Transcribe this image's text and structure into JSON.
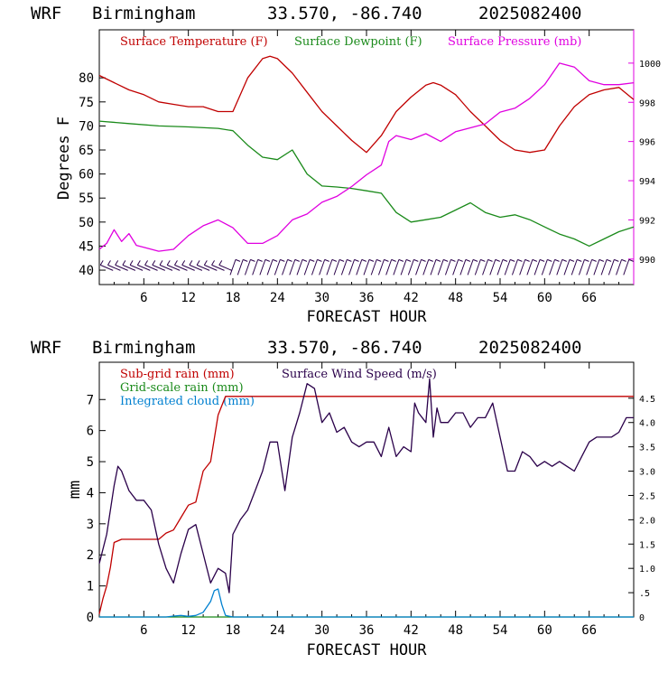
{
  "header": {
    "model": "WRF",
    "station": "Birmingham",
    "coords": "33.570, -86.740",
    "init": "2025082400"
  },
  "colors": {
    "temperature": "#c00000",
    "dewpoint": "#1a8a1a",
    "pressure": "#e000e0",
    "wind_barbs": "#2a004a",
    "subgrid_rain": "#c00000",
    "gridscale_rain": "#1a8a1a",
    "cloud": "#0080d0",
    "wind_speed": "#2a004a"
  },
  "chart_data": [
    {
      "type": "line",
      "title": "",
      "xlabel": "FORECAST HOUR",
      "ylabel": "Degrees F",
      "x_ticks": [
        "6",
        "12",
        "18",
        "24",
        "30",
        "36",
        "42",
        "48",
        "54",
        "60",
        "66"
      ],
      "xlim": [
        0,
        72
      ],
      "ylim": [
        37,
        90
      ],
      "y_ticks": [
        "40",
        "45",
        "50",
        "55",
        "60",
        "65",
        "70",
        "75",
        "80"
      ],
      "y2_ticks": [
        "990",
        "992",
        "994",
        "996",
        "998",
        "1000"
      ],
      "y2lim": [
        988.7,
        1001.7
      ],
      "legend": [
        "Surface Temperature (F)",
        "Surface Dewpoint (F)",
        "Surface Pressure (mb)"
      ],
      "series": [
        {
          "name": "Surface Temperature (F)",
          "axis": "left",
          "x": [
            0,
            2,
            4,
            6,
            8,
            10,
            12,
            14,
            16,
            18,
            20,
            22,
            23,
            24,
            26,
            28,
            30,
            32,
            34,
            36,
            38,
            40,
            42,
            44,
            45,
            46,
            48,
            50,
            52,
            54,
            56,
            58,
            60,
            62,
            64,
            66,
            68,
            70,
            72
          ],
          "values": [
            80.5,
            79,
            77.5,
            76.5,
            75,
            74.5,
            74,
            74,
            73,
            73,
            80,
            84,
            84.5,
            84,
            81,
            77,
            73,
            70,
            67,
            64.5,
            68,
            73,
            76,
            78.5,
            79,
            78.5,
            76.5,
            73,
            70,
            67,
            65,
            64.5,
            65,
            70,
            74,
            76.5,
            77.5,
            78,
            75.5
          ]
        },
        {
          "name": "Surface Dewpoint (F)",
          "axis": "left",
          "x": [
            0,
            4,
            8,
            12,
            16,
            18,
            20,
            22,
            24,
            26,
            28,
            30,
            32,
            34,
            36,
            38,
            40,
            42,
            44,
            46,
            48,
            50,
            52,
            54,
            56,
            58,
            60,
            62,
            64,
            66,
            68,
            70,
            72
          ],
          "values": [
            71,
            70.5,
            70,
            69.8,
            69.5,
            69,
            66,
            63.5,
            63,
            65,
            60,
            57.5,
            57.3,
            57,
            56.5,
            56,
            52,
            50,
            50.5,
            51,
            52.5,
            54,
            52,
            51,
            51.5,
            50.5,
            49,
            47.5,
            46.5,
            45,
            46.5,
            48,
            49
          ]
        },
        {
          "name": "Surface Pressure (mb)",
          "axis": "right",
          "x": [
            0,
            1,
            2,
            3,
            4,
            5,
            6,
            8,
            10,
            12,
            14,
            16,
            18,
            20,
            22,
            24,
            26,
            28,
            30,
            32,
            34,
            36,
            38,
            39,
            40,
            42,
            44,
            46,
            48,
            50,
            52,
            54,
            56,
            58,
            60,
            62,
            64,
            66,
            68,
            70,
            72
          ],
          "values": [
            990.5,
            990.8,
            991.5,
            990.9,
            991.3,
            990.7,
            990.6,
            990.4,
            990.5,
            991.2,
            991.7,
            992,
            991.6,
            990.8,
            990.8,
            991.2,
            992,
            992.3,
            992.9,
            993.2,
            993.7,
            994.3,
            994.8,
            996,
            996.3,
            996.1,
            996.4,
            996,
            996.5,
            996.7,
            996.9,
            997.5,
            997.7,
            998.2,
            998.9,
            1000,
            999.8,
            999.1,
            998.9,
            998.9,
            999
          ]
        }
      ],
      "wind_barb_hours": [
        1,
        2,
        3,
        4,
        5,
        6,
        7,
        8,
        9,
        10,
        11,
        12,
        13,
        14,
        15,
        16,
        17,
        18,
        19,
        20,
        21,
        22,
        23,
        24,
        25,
        26,
        27,
        28,
        29,
        30,
        31,
        32,
        33,
        34,
        35,
        36,
        37,
        38,
        39,
        40,
        41,
        42,
        43,
        44,
        45,
        46,
        47,
        48,
        49,
        50,
        51,
        52,
        53,
        54,
        55,
        56,
        57,
        58,
        59,
        60,
        61,
        62,
        63,
        64,
        65,
        66,
        67,
        68,
        69,
        70,
        71
      ]
    },
    {
      "type": "line",
      "title": "",
      "xlabel": "FORECAST HOUR",
      "ylabel": "mm",
      "x_ticks": [
        "6",
        "12",
        "18",
        "24",
        "30",
        "36",
        "42",
        "48",
        "54",
        "60",
        "66"
      ],
      "xlim": [
        0,
        72
      ],
      "ylim": [
        0,
        8.2
      ],
      "y_ticks": [
        "0",
        "1",
        "2",
        "3",
        "4",
        "5",
        "6",
        "7"
      ],
      "y2_ticks": [
        "0",
        ".5",
        "1.0",
        "1.5",
        "2.0",
        "2.5",
        "3.0",
        "3.5",
        "4.0",
        "4.5"
      ],
      "y2lim": [
        0,
        5.24
      ],
      "legend": [
        "Sub-grid rain (mm)",
        "Grid-scale rain (mm)",
        "Integrated cloud (mm)",
        "Surface Wind Speed (m/s)"
      ],
      "series": [
        {
          "name": "Sub-grid rain (mm)",
          "axis": "left",
          "x": [
            0,
            0.5,
            1,
            1.5,
            2,
            3,
            4,
            6,
            8,
            9,
            10,
            11,
            12,
            13,
            14,
            15,
            16,
            17,
            18,
            19,
            20,
            72
          ],
          "values": [
            0.1,
            0.6,
            1.0,
            1.6,
            2.4,
            2.5,
            2.5,
            2.5,
            2.5,
            2.7,
            2.8,
            3.2,
            3.6,
            3.7,
            4.7,
            5.0,
            6.5,
            7.1,
            7.1,
            7.1,
            7.1,
            7.1
          ]
        },
        {
          "name": "Grid-scale rain (mm)",
          "axis": "left",
          "x": [
            0,
            72
          ],
          "values": [
            0,
            0
          ]
        },
        {
          "name": "Integrated cloud (mm)",
          "axis": "left",
          "x": [
            0,
            9,
            10,
            11,
            12,
            13,
            14,
            15,
            15.5,
            16,
            16.5,
            17,
            18,
            72
          ],
          "values": [
            0,
            0,
            0.03,
            0.05,
            0.02,
            0.05,
            0.15,
            0.5,
            0.85,
            0.9,
            0.4,
            0.05,
            0,
            0
          ]
        },
        {
          "name": "Surface Wind Speed (m/s)",
          "axis": "right",
          "x": [
            0,
            1,
            2,
            2.5,
            3,
            4,
            5,
            6,
            7,
            8,
            9,
            10,
            11,
            12,
            13,
            14,
            15,
            16,
            17,
            17.5,
            18,
            19,
            20,
            21,
            22,
            23,
            24,
            25,
            26,
            27,
            28,
            29,
            30,
            31,
            32,
            33,
            34,
            35,
            36,
            37,
            38,
            39,
            40,
            41,
            42,
            42.5,
            43,
            44,
            44.5,
            45,
            45.5,
            46,
            47,
            48,
            49,
            50,
            51,
            52,
            53,
            54,
            55,
            56,
            57,
            58,
            59,
            60,
            61,
            62,
            63,
            64,
            65,
            66,
            67,
            68,
            69,
            70,
            71,
            72
          ],
          "values": [
            1.1,
            1.7,
            2.7,
            3.1,
            3.0,
            2.6,
            2.4,
            2.4,
            2.2,
            1.5,
            1.0,
            0.7,
            1.3,
            1.8,
            1.9,
            1.3,
            0.7,
            1.0,
            0.9,
            0.5,
            1.7,
            2.0,
            2.2,
            2.6,
            3.0,
            3.6,
            3.6,
            2.6,
            3.7,
            4.2,
            4.8,
            4.7,
            4.0,
            4.2,
            3.8,
            3.9,
            3.6,
            3.5,
            3.6,
            3.6,
            3.3,
            3.9,
            3.3,
            3.5,
            3.4,
            4.4,
            4.2,
            4.0,
            4.9,
            3.7,
            4.3,
            4.0,
            4.0,
            4.2,
            4.2,
            3.9,
            4.1,
            4.1,
            4.4,
            3.7,
            3.0,
            3.0,
            3.4,
            3.3,
            3.1,
            3.2,
            3.1,
            3.2,
            3.1,
            3.0,
            3.3,
            3.6,
            3.7,
            3.7,
            3.7,
            3.8,
            4.1,
            4.1
          ]
        }
      ]
    }
  ]
}
